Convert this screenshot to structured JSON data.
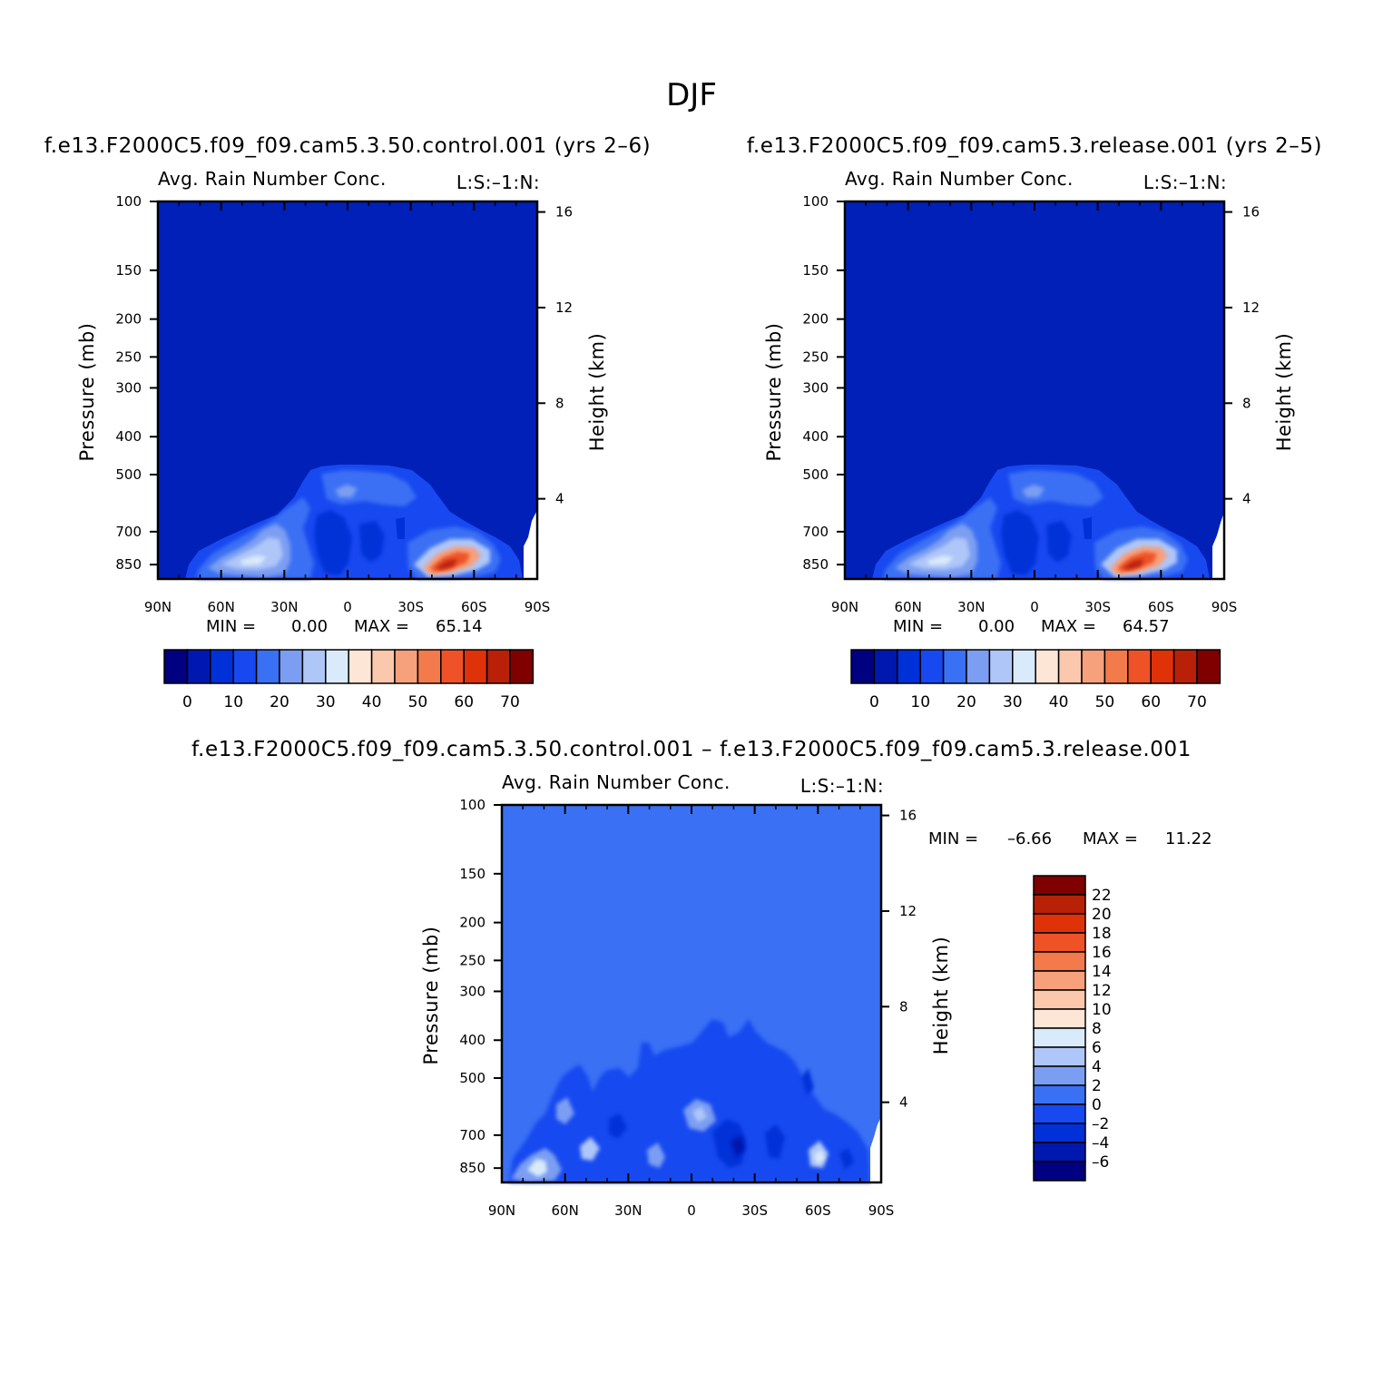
{
  "title": "DJF",
  "colors": {
    "cb_main": [
      "#000080",
      "#0018b0",
      "#0030d8",
      "#1848f0",
      "#3a70f4",
      "#7b9ef2",
      "#afc6f8",
      "#d9eafb",
      "#fde6d6",
      "#fbc8ad",
      "#f6a07c",
      "#f37a4a",
      "#ef5226",
      "#e03208",
      "#b82008",
      "#800000"
    ],
    "cb_diff": [
      "#000080",
      "#0018b0",
      "#0030d8",
      "#1848f0",
      "#3a70f4",
      "#7b9ef2",
      "#afc6f8",
      "#d9eafb",
      "#fde6d6",
      "#fbc8ad",
      "#f6a07c",
      "#f37a4a",
      "#ef5226",
      "#e03208",
      "#b82008",
      "#800000"
    ]
  },
  "chart_data": [
    {
      "type": "heatmap",
      "panel": "control",
      "case_title": "f.e13.F2000C5.f09_f09.cam5.3.50.control.001  (yrs  2–6)",
      "var_title": "Avg.  Rain  Number  Conc.",
      "units": "L:S:–1:N:",
      "xlabel": "",
      "ylabel": "Pressure  (mb)",
      "ylabel_right": "Height  (km)",
      "x_ticks": [
        "90N",
        "60N",
        "30N",
        "0",
        "30S",
        "60S",
        "90S"
      ],
      "y_ticks": [
        "100",
        "150",
        "200",
        "250",
        "300",
        "400",
        "500",
        "700",
        "850"
      ],
      "y_right_ticks": [
        "16",
        "12",
        "8",
        "4"
      ],
      "min_label": "MIN  =",
      "min_value": "0.00",
      "max_label": "MAX  =",
      "max_value": "65.14",
      "colorbar_labels": [
        "0",
        "10",
        "20",
        "30",
        "40",
        "50",
        "60",
        "70"
      ]
    },
    {
      "type": "heatmap",
      "panel": "release",
      "case_title": "f.e13.F2000C5.f09_f09.cam5.3.release.001  (yrs  2–5)",
      "var_title": "Avg.  Rain  Number  Conc.",
      "units": "L:S:–1:N:",
      "xlabel": "",
      "ylabel": "Pressure  (mb)",
      "ylabel_right": "Height  (km)",
      "x_ticks": [
        "90N",
        "60N",
        "30N",
        "0",
        "30S",
        "60S",
        "90S"
      ],
      "y_ticks": [
        "100",
        "150",
        "200",
        "250",
        "300",
        "400",
        "500",
        "700",
        "850"
      ],
      "y_right_ticks": [
        "16",
        "12",
        "8",
        "4"
      ],
      "min_label": "MIN  =",
      "min_value": "0.00",
      "max_label": "MAX  =",
      "max_value": "64.57",
      "colorbar_labels": [
        "0",
        "10",
        "20",
        "30",
        "40",
        "50",
        "60",
        "70"
      ]
    },
    {
      "type": "heatmap",
      "panel": "difference",
      "case_title": "f.e13.F2000C5.f09_f09.cam5.3.50.control.001  –  f.e13.F2000C5.f09_f09.cam5.3.release.001",
      "var_title": "Avg.  Rain  Number  Conc.",
      "units": "L:S:–1:N:",
      "xlabel": "",
      "ylabel": "Pressure  (mb)",
      "ylabel_right": "Height  (km)",
      "x_ticks": [
        "90N",
        "60N",
        "30N",
        "0",
        "30S",
        "60S",
        "90S"
      ],
      "y_ticks": [
        "100",
        "150",
        "200",
        "250",
        "300",
        "400",
        "500",
        "700",
        "850"
      ],
      "y_right_ticks": [
        "16",
        "12",
        "8",
        "4"
      ],
      "min_label": "MIN  =",
      "min_value": "–6.66",
      "max_label": "MAX  =",
      "max_value": "11.22",
      "colorbar_labels": [
        "22",
        "20",
        "18",
        "16",
        "14",
        "12",
        "10",
        "8",
        "6",
        "4",
        "2",
        "0",
        "–2",
        "–4",
        "–6"
      ]
    }
  ]
}
